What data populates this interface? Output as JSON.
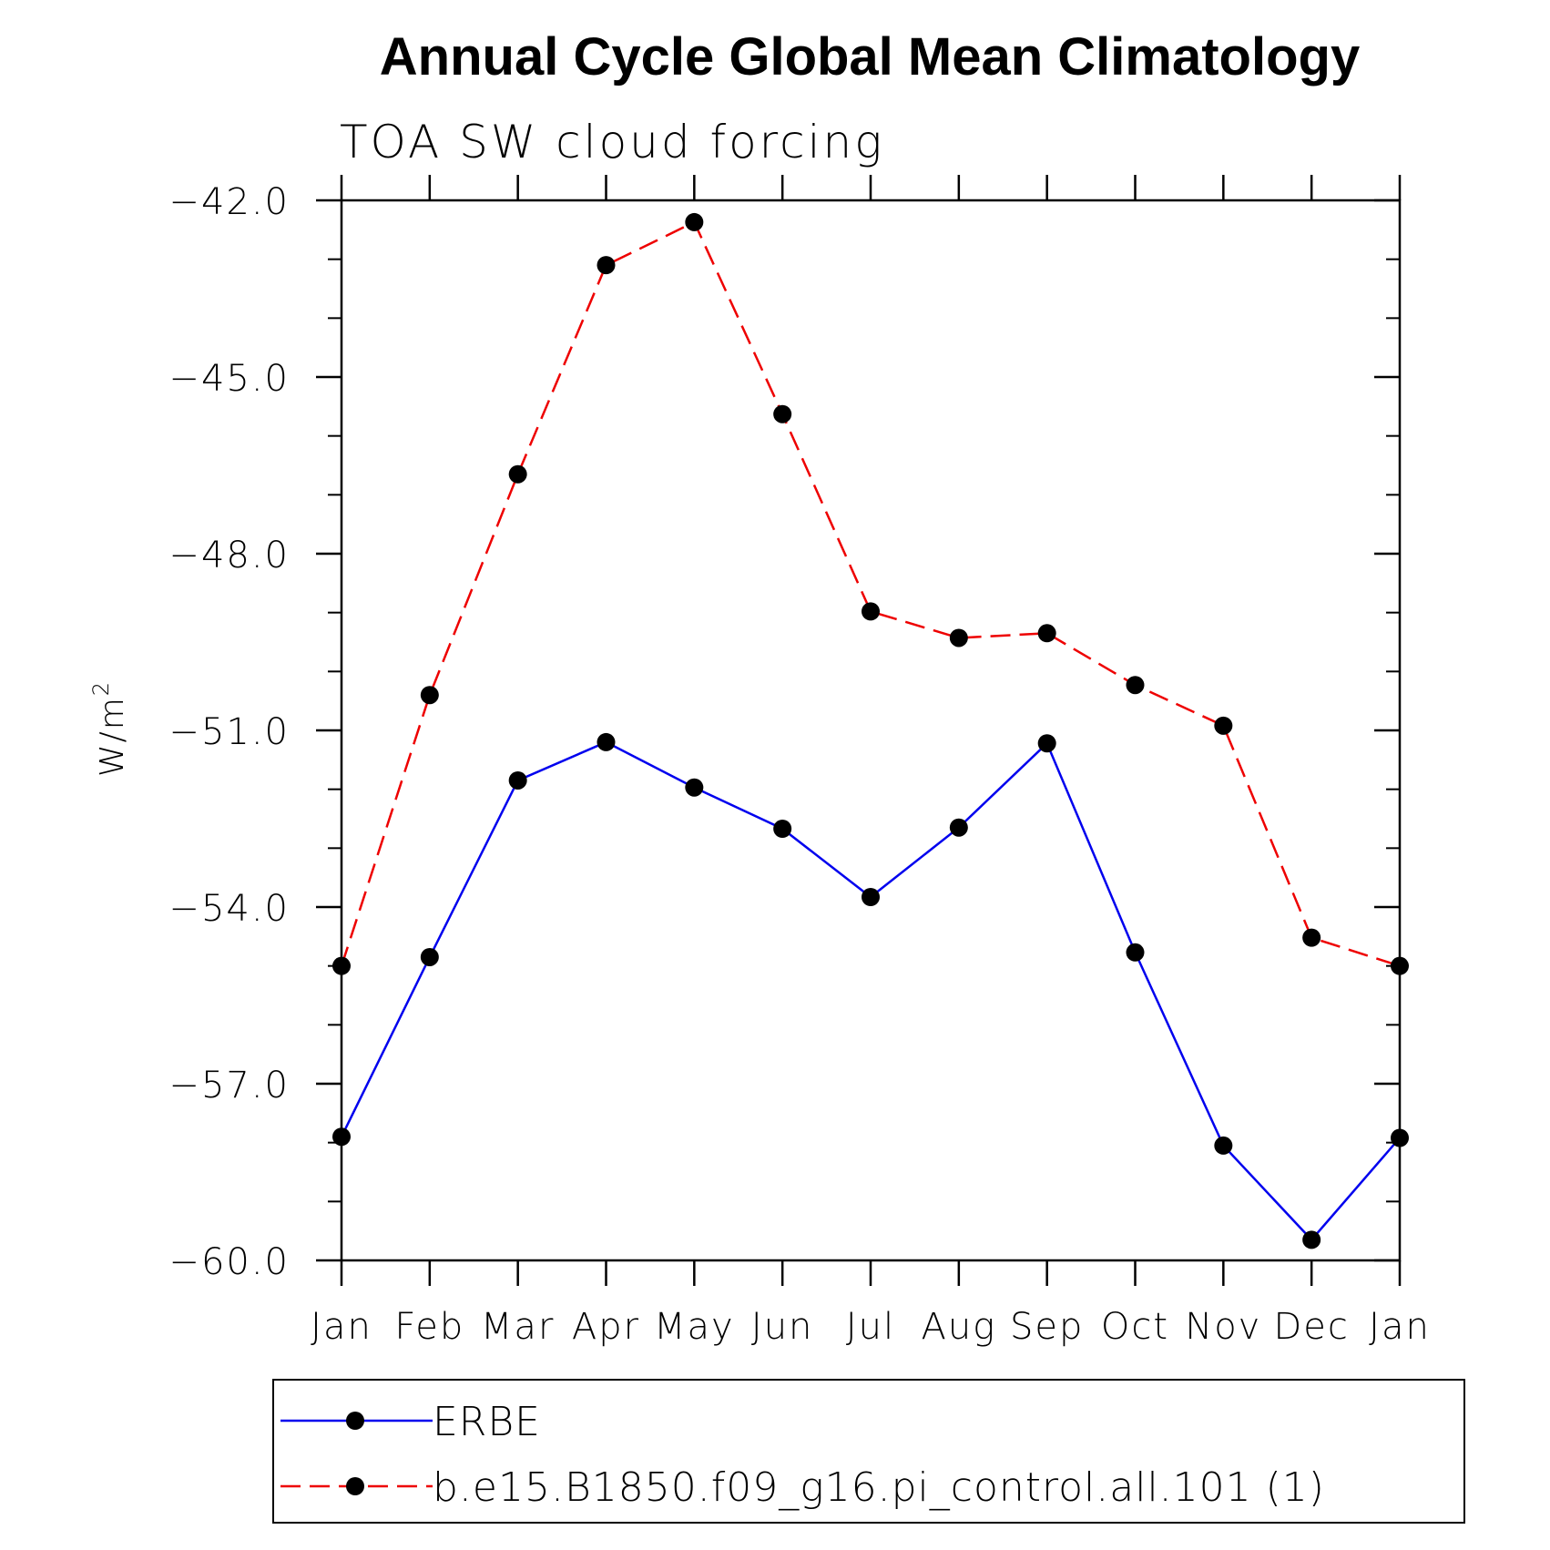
{
  "chart_data": {
    "type": "line",
    "title": "Annual Cycle Global Mean Climatology",
    "subtitle": "TOA SW cloud forcing",
    "ylabel": "W/m",
    "ylabel_sup": "2",
    "xlabel": "",
    "categories": [
      "Jan",
      "Feb",
      "Mar",
      "Apr",
      "May",
      "Jun",
      "Jul",
      "Aug",
      "Sep",
      "Oct",
      "Nov",
      "Dec",
      "Jan"
    ],
    "ylim": [
      -60.0,
      -42.0
    ],
    "yticks": [
      -42.0,
      -45.0,
      -48.0,
      -51.0,
      -54.0,
      -57.0,
      -60.0
    ],
    "ytick_labels": [
      "−42.0",
      "−45.0",
      "−48.0",
      "−51.0",
      "−54.0",
      "−57.0",
      "−60.0"
    ],
    "y_minor_step": 1.0,
    "grid": false,
    "legend_position": "bottom",
    "series": [
      {
        "name": "ERBE",
        "color": "#0000ee",
        "style": "solid",
        "marker": "circle",
        "values": [
          -57.9,
          -54.85,
          -51.85,
          -51.2,
          -51.97,
          -52.67,
          -53.83,
          -52.65,
          -51.22,
          -54.77,
          -58.05,
          -59.65,
          -57.92
        ]
      },
      {
        "name": "b.e15.B1850.f09_g16.pi_control.all.101 (1)",
        "color": "#ee0000",
        "style": "dashed",
        "marker": "circle",
        "values": [
          -55.0,
          -50.4,
          -46.65,
          -43.1,
          -42.37,
          -45.63,
          -48.98,
          -49.43,
          -49.35,
          -50.23,
          -50.92,
          -54.52,
          -55.0
        ]
      }
    ]
  }
}
